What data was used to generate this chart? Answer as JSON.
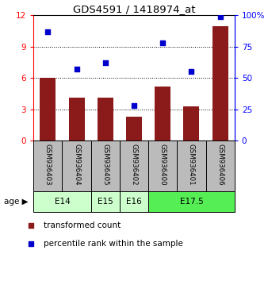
{
  "title": "GDS4591 / 1418974_at",
  "samples": [
    "GSM936403",
    "GSM936404",
    "GSM936405",
    "GSM936402",
    "GSM936400",
    "GSM936401",
    "GSM936406"
  ],
  "transformed_counts": [
    6.0,
    4.1,
    4.1,
    2.3,
    5.2,
    3.3,
    11.0
  ],
  "percentile_ranks": [
    87,
    57,
    62,
    28,
    78,
    55,
    99
  ],
  "bar_color": "#8B1A1A",
  "dot_color": "#0000CC",
  "left_ylim": [
    0,
    12
  ],
  "right_ylim": [
    0,
    100
  ],
  "left_yticks": [
    0,
    3,
    6,
    9,
    12
  ],
  "right_yticks": [
    0,
    25,
    50,
    75,
    100
  ],
  "right_yticklabels": [
    "0",
    "25",
    "50",
    "75",
    "100%"
  ],
  "age_groups": [
    {
      "label": "E14",
      "span": [
        0,
        1
      ],
      "color": "#CCFFCC"
    },
    {
      "label": "E15",
      "span": [
        2,
        2
      ],
      "color": "#CCFFCC"
    },
    {
      "label": "E16",
      "span": [
        3,
        3
      ],
      "color": "#CCFFCC"
    },
    {
      "label": "E17.5",
      "span": [
        4,
        6
      ],
      "color": "#55EE55"
    }
  ],
  "legend_bar_label": "transformed count",
  "legend_dot_label": "percentile rank within the sample"
}
